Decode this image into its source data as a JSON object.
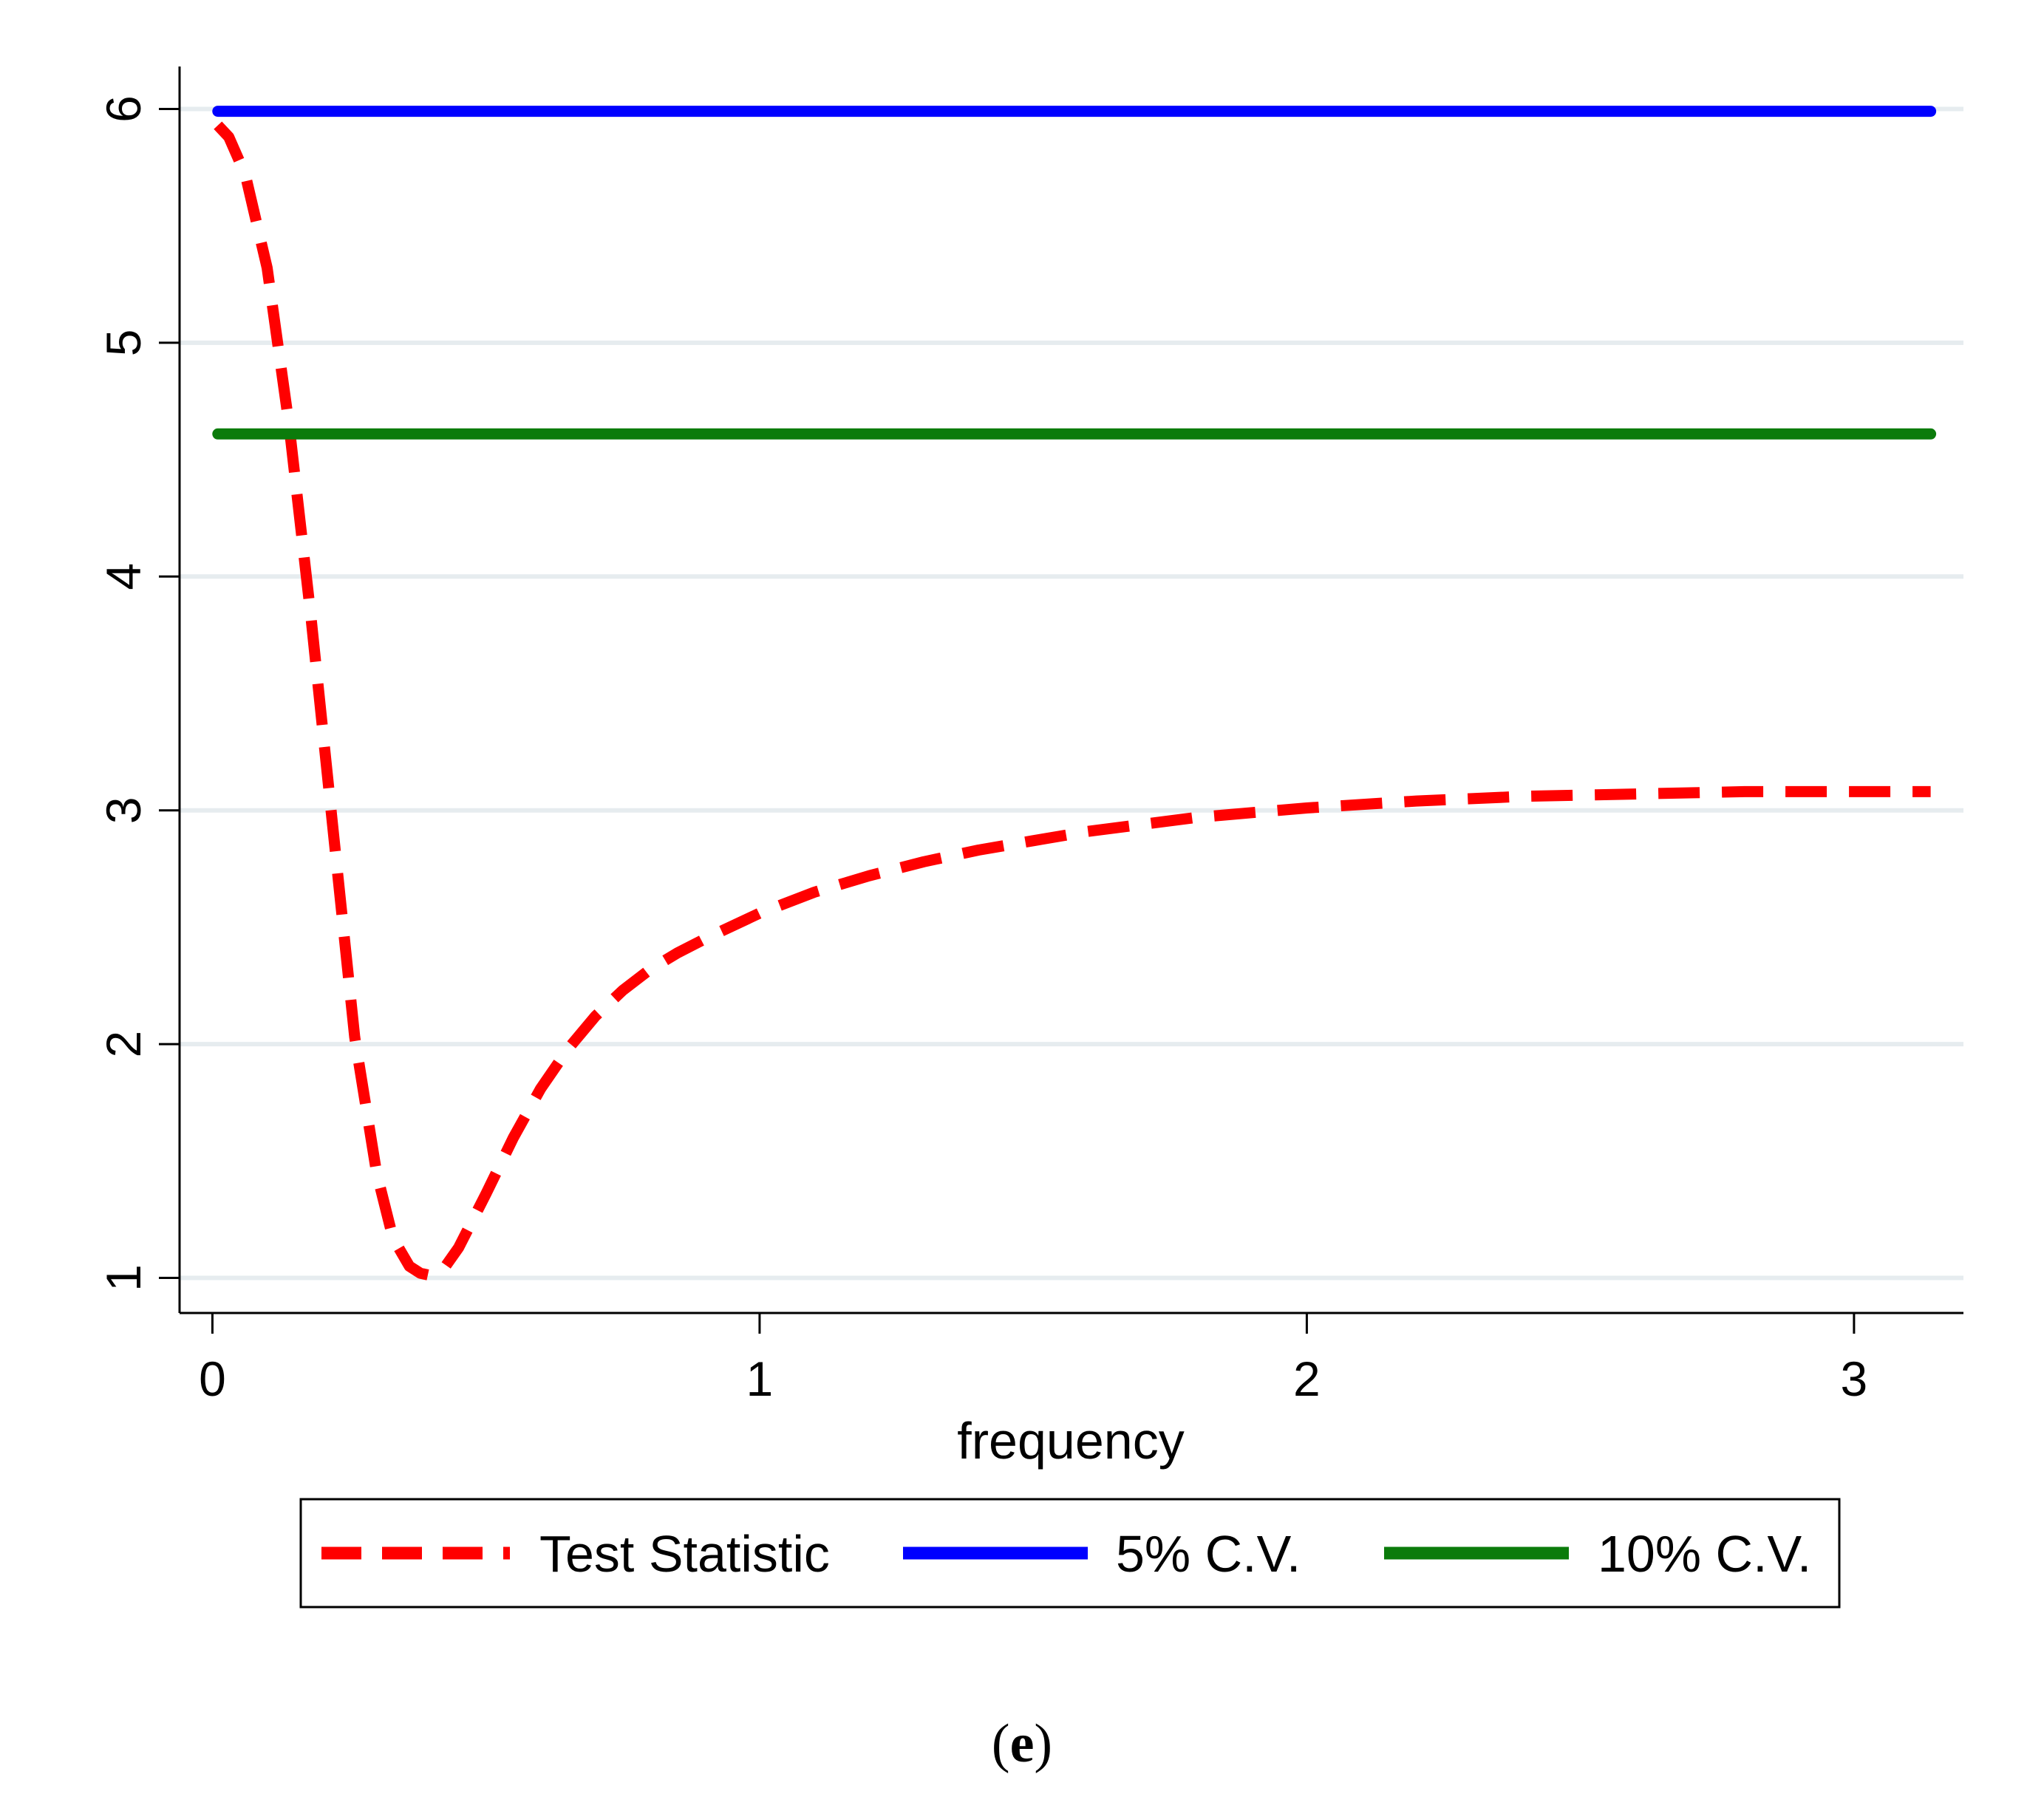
{
  "chart_data": {
    "type": "line",
    "title": "",
    "xlabel": "frequency",
    "ylabel": "",
    "xlim": [
      -0.06,
      3.2
    ],
    "ylim": [
      0.85,
      6.15
    ],
    "x_ticks": [
      0,
      1,
      2,
      3
    ],
    "y_ticks": [
      1,
      2,
      3,
      4,
      5,
      6
    ],
    "grid": "horizontal",
    "legend_position": "bottom",
    "series": [
      {
        "name": "Test Statistic",
        "color": "#ff0000",
        "style": "dashed",
        "x": [
          0.01,
          0.03,
          0.06,
          0.1,
          0.14,
          0.18,
          0.22,
          0.26,
          0.3,
          0.33,
          0.36,
          0.38,
          0.4,
          0.42,
          0.45,
          0.5,
          0.55,
          0.6,
          0.65,
          0.7,
          0.75,
          0.8,
          0.85,
          0.9,
          1.0,
          1.1,
          1.2,
          1.3,
          1.4,
          1.5,
          1.6,
          1.8,
          2.0,
          2.2,
          2.4,
          2.6,
          2.8,
          3.0,
          3.14
        ],
        "y": [
          5.93,
          5.88,
          5.72,
          5.32,
          4.65,
          3.83,
          2.93,
          2.03,
          1.45,
          1.17,
          1.05,
          1.02,
          1.01,
          1.03,
          1.13,
          1.36,
          1.6,
          1.81,
          1.98,
          2.12,
          2.23,
          2.32,
          2.39,
          2.45,
          2.56,
          2.65,
          2.72,
          2.78,
          2.83,
          2.87,
          2.91,
          2.97,
          3.01,
          3.04,
          3.06,
          3.07,
          3.08,
          3.08,
          3.08
        ]
      },
      {
        "name": "5% C.V.",
        "color": "#0000ff",
        "style": "solid",
        "x": [
          0.01,
          3.14
        ],
        "y": [
          5.99,
          5.99
        ]
      },
      {
        "name": "10% C.V.",
        "color": "#0b7b0b",
        "style": "solid",
        "x": [
          0.01,
          3.14
        ],
        "y": [
          4.61,
          4.61
        ]
      }
    ]
  },
  "caption": {
    "open": "(",
    "letter": "e",
    "close": ")"
  }
}
